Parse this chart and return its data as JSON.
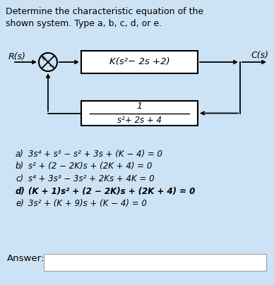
{
  "title_line1": "Determine the characteristic equation of the",
  "title_line2": "shown system. Type a, b, c, d, or e.",
  "bg_color": "#cce3f5",
  "block_bg": "#ffffff",
  "text_color": "#000000",
  "R_label": "R(s)",
  "C_label": "C(s)",
  "forward_block": "K(s²− 2s +2)",
  "feedback_num": "1",
  "feedback_den": "s²+ 2s + 4",
  "options": [
    [
      "a)",
      "3s⁴ + s³ − s² + 3s + (K − 4) = 0",
      false
    ],
    [
      "b)",
      "s² + (2 − 2K)s + (2K + 4) = 0",
      false
    ],
    [
      "c)",
      "s⁴ + 3s³ − 3s² + 2Ks + 4K = 0",
      false
    ],
    [
      "d)",
      "(K + 1)s² + (2 − 2K)s + (2K + 4) = 0",
      true
    ],
    [
      "e)",
      "3s² + (K + 9)s + (K − 4) = 0",
      false
    ]
  ],
  "answer_label": "Answer:",
  "fig_width": 3.88,
  "fig_height": 4.04,
  "dpi": 100
}
